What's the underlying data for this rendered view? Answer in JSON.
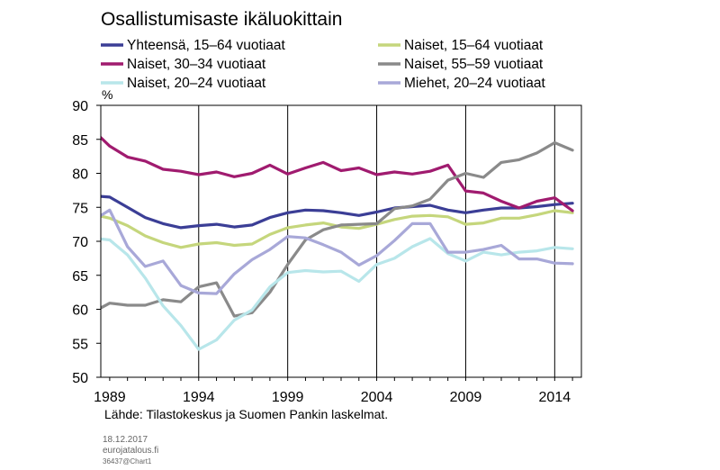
{
  "chart_data": {
    "type": "line",
    "title": "Osallistumisaste ikäluokittain",
    "ylabel": "%",
    "ylim": [
      50,
      90
    ],
    "yticks": [
      50,
      55,
      60,
      65,
      70,
      75,
      80,
      85,
      90
    ],
    "xlim": [
      1988.5,
      2015.5
    ],
    "xtick_labels": [
      "1989",
      "1994",
      "1999",
      "2004",
      "2009",
      "2014"
    ],
    "xtick_values": [
      1989,
      1994,
      1999,
      2004,
      2009,
      2014
    ],
    "grid": "vertical",
    "legend": "top",
    "x": [
      1988,
      1989,
      1990,
      1991,
      1992,
      1993,
      1994,
      1995,
      1996,
      1997,
      1998,
      1999,
      2000,
      2001,
      2002,
      2003,
      2004,
      2005,
      2006,
      2007,
      2008,
      2009,
      2010,
      2011,
      2012,
      2013,
      2014,
      2015
    ],
    "series": [
      {
        "name": "Yhteensä, 15–64 vuotiaat",
        "color": "#3b3e96",
        "values": [
          76.7,
          76.5,
          75,
          73.5,
          72.6,
          72,
          72.3,
          72.5,
          72.1,
          72.4,
          73.5,
          74.2,
          74.6,
          74.5,
          74.2,
          73.8,
          74.3,
          74.9,
          75.1,
          75.3,
          74.6,
          74.2,
          74.6,
          74.9,
          74.9,
          75.1,
          75.4,
          75.6
        ]
      },
      {
        "name": "Naiset, 15–64 vuotiaat",
        "color": "#c5d67c",
        "values": [
          74,
          73.4,
          72.3,
          70.8,
          69.8,
          69.1,
          69.6,
          69.8,
          69.4,
          69.6,
          71,
          72,
          72.4,
          72.7,
          72.1,
          71.9,
          72.5,
          73.2,
          73.7,
          73.8,
          73.6,
          72.5,
          72.7,
          73.4,
          73.4,
          73.9,
          74.5,
          74.2
        ]
      },
      {
        "name": "Naiset, 30–34 vuotiaat",
        "color": "#a01b6f",
        "values": [
          86.5,
          84,
          82.4,
          81.8,
          80.6,
          80.3,
          79.8,
          80.2,
          79.5,
          80,
          81.2,
          79.9,
          80.8,
          81.6,
          80.4,
          80.8,
          79.8,
          80.2,
          79.9,
          80.3,
          81.2,
          77.4,
          77.1,
          75.9,
          74.9,
          75.9,
          76.4,
          74.5
        ]
      },
      {
        "name": "Naiset, 55–59 vuotiaat",
        "color": "#8a8a8a",
        "values": [
          59.5,
          60.9,
          60.6,
          60.6,
          61.4,
          61.1,
          63.3,
          63.9,
          59,
          59.5,
          62.5,
          66.6,
          70.2,
          71.7,
          72.4,
          72.5,
          72.6,
          74.8,
          75.2,
          76.2,
          79,
          80,
          79.4,
          81.6,
          82,
          83,
          84.5,
          83.4
        ]
      },
      {
        "name": "Naiset, 20–24 vuotiaat",
        "color": "#b8e6ea",
        "values": [
          70.5,
          70.2,
          68,
          64.6,
          60.5,
          57.6,
          54.1,
          55.5,
          58.4,
          59.9,
          63.3,
          65.4,
          65.7,
          65.5,
          65.6,
          64.1,
          66.6,
          67.5,
          69.2,
          70.4,
          68.2,
          67.1,
          68.4,
          68,
          68.4,
          68.6,
          69.1,
          68.9
        ]
      },
      {
        "name": "Miehet, 20–24 vuotiaat",
        "color": "#a8a8d8",
        "values": [
          73,
          74.6,
          69.2,
          66.3,
          67.1,
          63.5,
          62.4,
          62.3,
          65.2,
          67.3,
          68.8,
          70.7,
          70.5,
          69.5,
          68.4,
          66.5,
          67.9,
          70.1,
          72.6,
          72.6,
          68.4,
          68.4,
          68.8,
          69.4,
          67.4,
          67.4,
          66.8,
          66.7
        ]
      }
    ]
  },
  "source": "Lähde: Tilastokeskus ja Suomen Pankin laskelmat.",
  "footer": {
    "date": "18.12.2017",
    "site": "eurojatalous.fi",
    "code": "36437@Chart1"
  }
}
